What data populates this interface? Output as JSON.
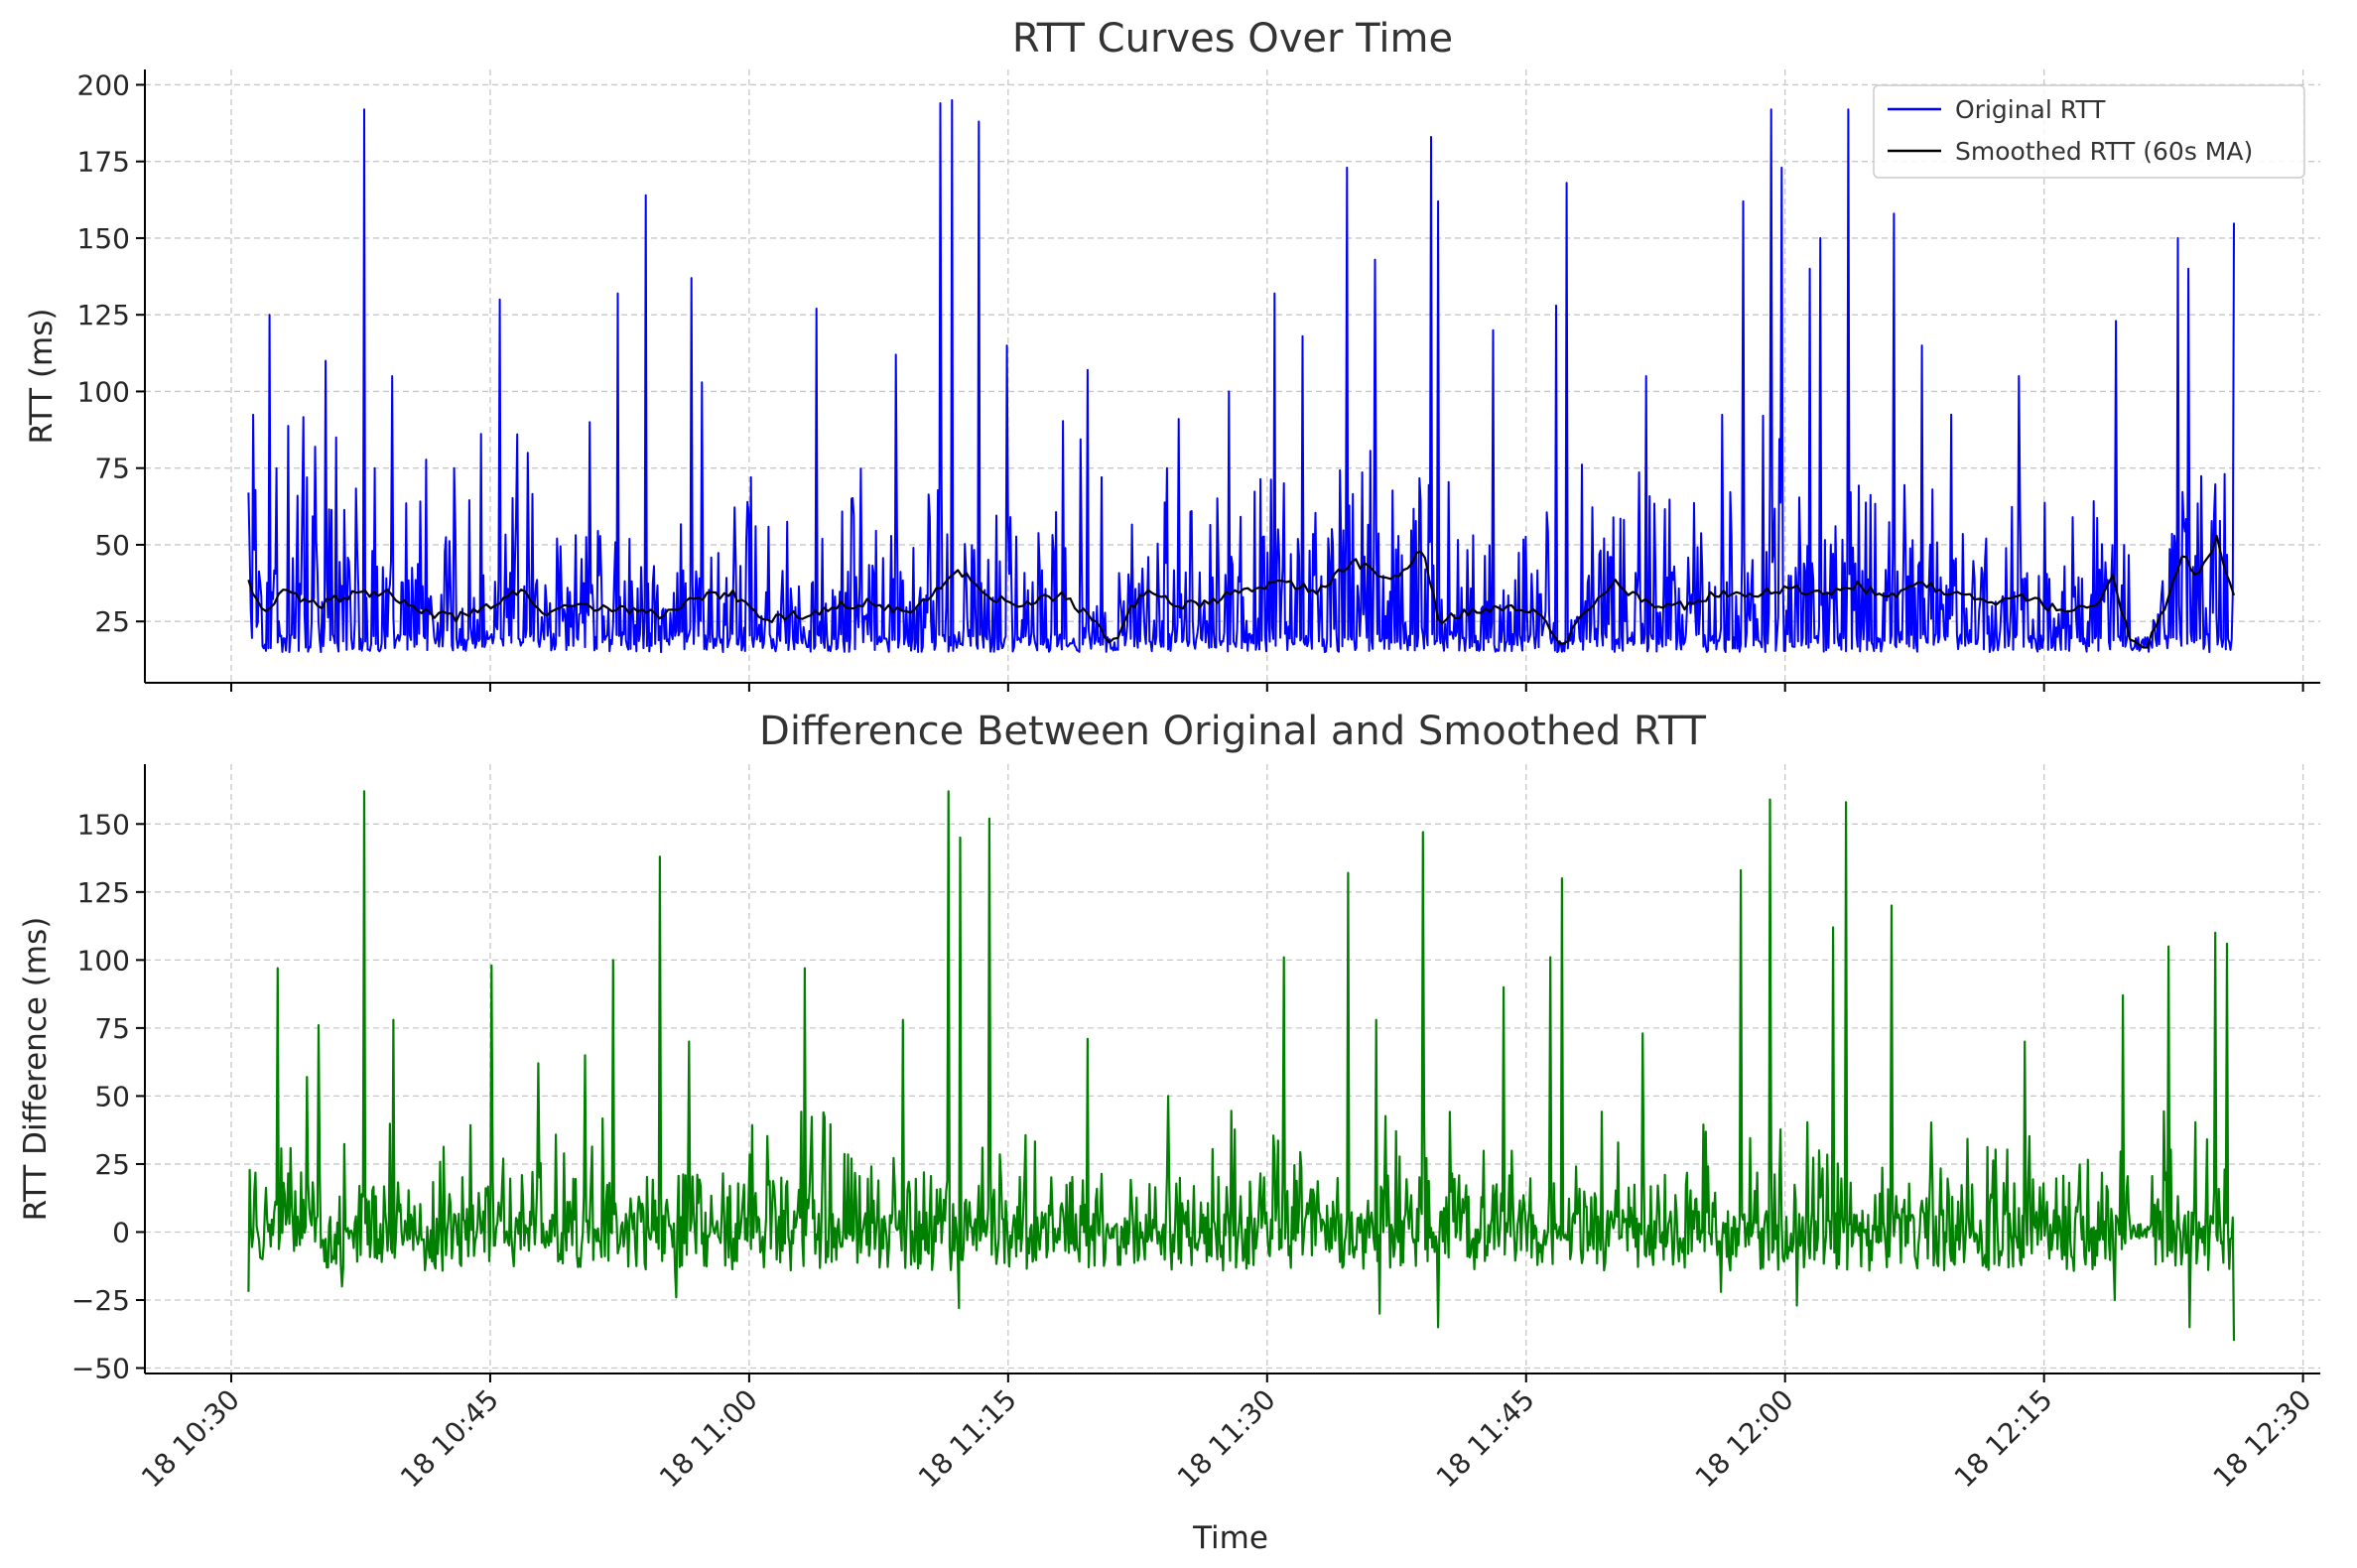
{
  "chart_data": [
    {
      "type": "line",
      "title": "RTT Curves Over Time",
      "xlabel": "",
      "ylabel": "RTT (ms)",
      "x_start": "10:31",
      "x_end": "12:26",
      "xlim": [
        "10:25",
        "12:31"
      ],
      "ylim": [
        5,
        205
      ],
      "yticks": [
        25,
        50,
        75,
        100,
        125,
        150,
        175,
        200
      ],
      "grid": true,
      "legend_position": "top-right",
      "series": [
        {
          "name": "Original RTT",
          "color": "#0000ff",
          "style": "high-frequency spiky signal, floor ~15 ms",
          "baseline_ms": 15,
          "spikes": [
            [
              "10:31",
              67
            ],
            [
              "10:32",
              75
            ],
            [
              "10:32",
              125
            ],
            [
              "10:34",
              82
            ],
            [
              "10:35",
              110
            ],
            [
              "10:36",
              85
            ],
            [
              "10:37",
              192
            ],
            [
              "10:39",
              105
            ],
            [
              "10:42",
              75
            ],
            [
              "10:45",
              130
            ],
            [
              "10:47",
              80
            ],
            [
              "10:50",
              90
            ],
            [
              "10:52",
              132
            ],
            [
              "10:54",
              164
            ],
            [
              "10:56",
              137
            ],
            [
              "10:57",
              103
            ],
            [
              "11:03",
              127
            ],
            [
              "11:08",
              112
            ],
            [
              "11:11",
              194
            ],
            [
              "11:11",
              195
            ],
            [
              "11:13",
              188
            ],
            [
              "11:14",
              115
            ],
            [
              "11:19",
              107
            ],
            [
              "11:24",
              75
            ],
            [
              "11:27",
              100
            ],
            [
              "11:30",
              132
            ],
            [
              "11:32",
              118
            ],
            [
              "11:34",
              173
            ],
            [
              "11:36",
              143
            ],
            [
              "11:39",
              162
            ],
            [
              "11:39",
              183
            ],
            [
              "11:43",
              120
            ],
            [
              "11:46",
              128
            ],
            [
              "11:47",
              168
            ],
            [
              "11:51",
              105
            ],
            [
              "11:57",
              162
            ],
            [
              "11:59",
              192
            ],
            [
              "11:59",
              173
            ],
            [
              "12:01",
              140
            ],
            [
              "12:02",
              150
            ],
            [
              "12:03",
              192
            ],
            [
              "12:06",
              158
            ],
            [
              "12:07",
              115
            ],
            [
              "12:13",
              105
            ],
            [
              "12:19",
              123
            ],
            [
              "12:22",
              150
            ],
            [
              "12:23",
              140
            ],
            [
              "12:25",
              155
            ]
          ]
        },
        {
          "name": "Smoothed RTT (60s MA)",
          "color": "#000000",
          "points": [
            [
              "10:31",
              38
            ],
            [
              "10:32",
              28
            ],
            [
              "10:33",
              35
            ],
            [
              "10:35",
              30
            ],
            [
              "10:37",
              34
            ],
            [
              "10:39",
              35
            ],
            [
              "10:41",
              28
            ],
            [
              "10:43",
              26
            ],
            [
              "10:45",
              30
            ],
            [
              "10:47",
              36
            ],
            [
              "10:48",
              27
            ],
            [
              "10:50",
              30
            ],
            [
              "10:53",
              29
            ],
            [
              "10:55",
              27
            ],
            [
              "10:57",
              33
            ],
            [
              "10:59",
              34
            ],
            [
              "11:01",
              26
            ],
            [
              "11:03",
              27
            ],
            [
              "11:05",
              30
            ],
            [
              "11:07",
              31
            ],
            [
              "11:09",
              28
            ],
            [
              "11:11",
              36
            ],
            [
              "11:12",
              42
            ],
            [
              "11:14",
              33
            ],
            [
              "11:16",
              30
            ],
            [
              "11:18",
              34
            ],
            [
              "11:20",
              25
            ],
            [
              "11:21",
              17
            ],
            [
              "11:22",
              28
            ],
            [
              "11:23",
              35
            ],
            [
              "11:25",
              30
            ],
            [
              "11:27",
              32
            ],
            [
              "11:29",
              36
            ],
            [
              "11:31",
              38
            ],
            [
              "11:33",
              35
            ],
            [
              "11:35",
              45
            ],
            [
              "11:37",
              38
            ],
            [
              "11:38",
              42
            ],
            [
              "11:39",
              48
            ],
            [
              "11:40",
              25
            ],
            [
              "11:42",
              29
            ],
            [
              "11:44",
              30
            ],
            [
              "11:46",
              27
            ],
            [
              "11:47",
              16
            ],
            [
              "11:48",
              25
            ],
            [
              "11:50",
              38
            ],
            [
              "11:52",
              31
            ],
            [
              "11:54",
              30
            ],
            [
              "11:56",
              34
            ],
            [
              "11:58",
              33
            ],
            [
              "12:00",
              36
            ],
            [
              "12:02",
              34
            ],
            [
              "12:04",
              37
            ],
            [
              "12:06",
              33
            ],
            [
              "12:08",
              37
            ],
            [
              "12:10",
              34
            ],
            [
              "12:12",
              30
            ],
            [
              "12:14",
              33
            ],
            [
              "12:16",
              28
            ],
            [
              "12:18",
              29
            ],
            [
              "12:19",
              40
            ],
            [
              "12:20",
              18
            ],
            [
              "12:21",
              17
            ],
            [
              "12:22",
              30
            ],
            [
              "12:23",
              46
            ],
            [
              "12:24",
              40
            ],
            [
              "12:25",
              52
            ],
            [
              "12:26",
              32
            ]
          ]
        }
      ]
    },
    {
      "type": "line",
      "title": "Difference Between Original and Smoothed RTT",
      "xlabel": "Time",
      "ylabel": "RTT Difference (ms)",
      "x_start": "10:31",
      "x_end": "12:26",
      "xlim": [
        "10:25",
        "12:31"
      ],
      "ylim": [
        -52,
        172
      ],
      "yticks": [
        -50,
        -25,
        0,
        25,
        50,
        75,
        100,
        125,
        150
      ],
      "xticks": [
        "18 10:30",
        "18 10:45",
        "18 11:00",
        "18 11:15",
        "18 11:30",
        "18 11:45",
        "18 12:00",
        "18 12:15",
        "18 12:30"
      ],
      "grid": true,
      "series": [
        {
          "name": "",
          "color": "#008000",
          "style": "high-frequency signal oscillating around 0",
          "spikes": [
            [
              "10:31",
              20
            ],
            [
              "10:32",
              97
            ],
            [
              "10:34",
              57
            ],
            [
              "10:35",
              76
            ],
            [
              "10:37",
              162
            ],
            [
              "10:39",
              78
            ],
            [
              "10:45",
              98
            ],
            [
              "10:47",
              62
            ],
            [
              "10:50",
              65
            ],
            [
              "10:52",
              100
            ],
            [
              "10:54",
              138
            ],
            [
              "10:56",
              70
            ],
            [
              "11:03",
              97
            ],
            [
              "11:08",
              78
            ],
            [
              "11:11",
              162
            ],
            [
              "11:12",
              145
            ],
            [
              "11:13",
              152
            ],
            [
              "11:19",
              71
            ],
            [
              "11:24",
              50
            ],
            [
              "11:30",
              101
            ],
            [
              "11:34",
              132
            ],
            [
              "11:36",
              78
            ],
            [
              "11:39",
              147
            ],
            [
              "11:43",
              90
            ],
            [
              "11:46",
              101
            ],
            [
              "11:47",
              130
            ],
            [
              "11:51",
              73
            ],
            [
              "11:57",
              133
            ],
            [
              "11:59",
              159
            ],
            [
              "12:02",
              112
            ],
            [
              "12:03",
              158
            ],
            [
              "12:06",
              120
            ],
            [
              "12:13",
              70
            ],
            [
              "12:19",
              87
            ],
            [
              "12:22",
              105
            ],
            [
              "12:24",
              110
            ],
            [
              "12:25",
              106
            ]
          ],
          "dips": [
            [
              "10:31",
              -22
            ],
            [
              "10:36",
              -20
            ],
            [
              "10:55",
              -24
            ],
            [
              "11:12",
              -28
            ],
            [
              "11:36",
              -30
            ],
            [
              "11:39",
              -35
            ],
            [
              "11:56",
              -22
            ],
            [
              "12:00",
              -27
            ],
            [
              "12:19",
              -25
            ],
            [
              "12:23",
              -35
            ],
            [
              "12:26",
              -40
            ]
          ]
        }
      ]
    }
  ]
}
